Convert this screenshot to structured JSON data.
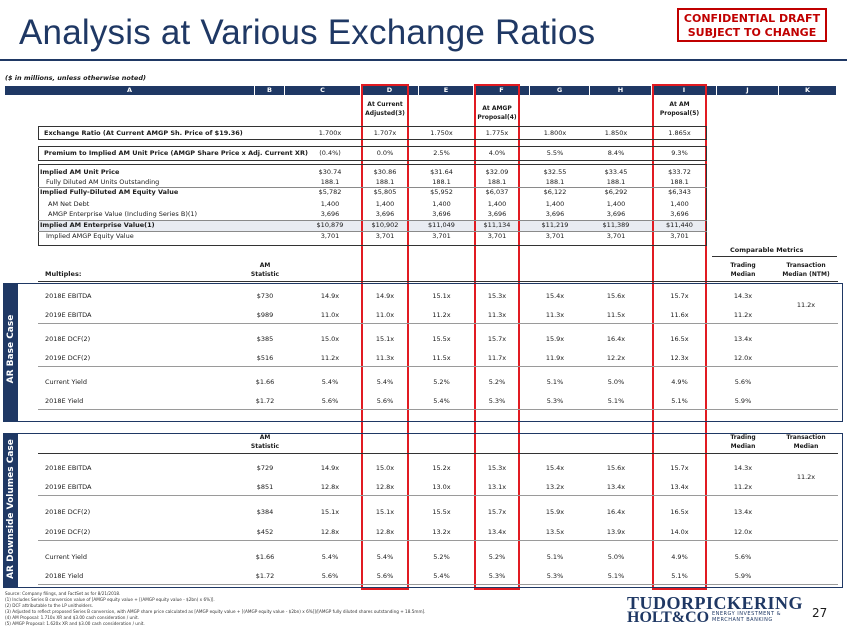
{
  "title": "Analysis at Various Exchange Ratios",
  "confidential": [
    "CONFIDENTIAL DRAFT",
    "SUBJECT TO CHANGE"
  ],
  "subnote": "($ in millions, unless otherwise noted)",
  "letters": [
    "A",
    "B",
    "C",
    "D",
    "E",
    "F",
    "G",
    "H",
    "I",
    "J",
    "K"
  ],
  "col_headers": {
    "d": [
      "At Current",
      "Adjusted(3)"
    ],
    "f": [
      "At AMGP",
      "Proposal(4)"
    ],
    "i": [
      "At AM",
      "Proposal(5)"
    ]
  },
  "top_rows": [
    {
      "label": "Exchange Ratio (At Current AMGP Sh. Price of $19.36)",
      "vals": [
        "1.700x",
        "1.707x",
        "1.750x",
        "1.775x",
        "1.800x",
        "1.850x",
        "1.865x"
      ]
    },
    {
      "label": "Premium to Implied AM Unit Price (AMGP Share Price x Adj. Current XR)",
      "vals": [
        "(0.4%)",
        "0.0%",
        "2.5%",
        "4.0%",
        "5.5%",
        "8.4%",
        "9.3%"
      ]
    },
    {
      "label": "Implied AM Unit Price",
      "vals": [
        "$30.74",
        "$30.86",
        "$31.64",
        "$32.09",
        "$32.55",
        "$33.45",
        "$33.72"
      ]
    },
    {
      "label": "Fully Diluted AM Units Outstanding",
      "vals": [
        "188.1",
        "188.1",
        "188.1",
        "188.1",
        "188.1",
        "188.1",
        "188.1"
      ]
    },
    {
      "label": "Implied Fully-Diluted AM Equity Value",
      "vals": [
        "$5,782",
        "$5,805",
        "$5,952",
        "$6,037",
        "$6,122",
        "$6,292",
        "$6,343"
      ]
    },
    {
      "label": "AM Net Debt",
      "vals": [
        "1,400",
        "1,400",
        "1,400",
        "1,400",
        "1,400",
        "1,400",
        "1,400"
      ]
    },
    {
      "label": "AMGP Enterprise Value (Including Series B)(1)",
      "vals": [
        "3,696",
        "3,696",
        "3,696",
        "3,696",
        "3,696",
        "3,696",
        "3,696"
      ]
    },
    {
      "label": "Implied AM Enterprise Value(1)",
      "vals": [
        "$10,879",
        "$10,902",
        "$11,049",
        "$11,134",
        "$11,219",
        "$11,389",
        "$11,440"
      ]
    },
    {
      "label": "Implied AMGP Equity Value",
      "vals": [
        "3,701",
        "3,701",
        "3,701",
        "3,701",
        "3,701",
        "3,701",
        "3,701"
      ]
    }
  ],
  "comparable_metrics": "Comparable Metrics",
  "base": {
    "section_label": "AR Base Case",
    "multiples_label": "Multiples:",
    "am_stat": [
      "AM",
      "Statistic"
    ],
    "trading": [
      "Trading",
      "Median"
    ],
    "transaction": [
      "Transaction",
      "Median (NTM)"
    ],
    "transaction_value": "11.2x",
    "rows": [
      {
        "label": "2018E EBITDA",
        "stat": "$730",
        "vals": [
          "14.9x",
          "14.9x",
          "15.1x",
          "15.3x",
          "15.4x",
          "15.6x",
          "15.7x"
        ],
        "trading": "14.3x"
      },
      {
        "label": "2019E EBITDA",
        "stat": "$989",
        "vals": [
          "11.0x",
          "11.0x",
          "11.2x",
          "11.3x",
          "11.3x",
          "11.5x",
          "11.6x"
        ],
        "trading": "11.2x"
      },
      {
        "label": "2018E DCF(2)",
        "stat": "$385",
        "vals": [
          "15.0x",
          "15.1x",
          "15.5x",
          "15.7x",
          "15.9x",
          "16.4x",
          "16.5x"
        ],
        "trading": "13.4x"
      },
      {
        "label": "2019E DCF(2)",
        "stat": "$516",
        "vals": [
          "11.2x",
          "11.3x",
          "11.5x",
          "11.7x",
          "11.9x",
          "12.2x",
          "12.3x"
        ],
        "trading": "12.0x"
      },
      {
        "label": "Current Yield",
        "stat": "$1.66",
        "vals": [
          "5.4%",
          "5.4%",
          "5.2%",
          "5.2%",
          "5.1%",
          "5.0%",
          "4.9%"
        ],
        "trading": "5.6%"
      },
      {
        "label": "2018E Yield",
        "stat": "$1.72",
        "vals": [
          "5.6%",
          "5.6%",
          "5.4%",
          "5.3%",
          "5.3%",
          "5.1%",
          "5.1%"
        ],
        "trading": "5.9%"
      }
    ]
  },
  "downside": {
    "section_label": "AR Downside Volumes Case",
    "am_stat": [
      "AM",
      "Statistic"
    ],
    "trading": [
      "Trading",
      "Median"
    ],
    "transaction": [
      "Transaction",
      "Median"
    ],
    "transaction_value": "11.2x",
    "rows": [
      {
        "label": "2018E EBITDA",
        "stat": "$729",
        "vals": [
          "14.9x",
          "15.0x",
          "15.2x",
          "15.3x",
          "15.4x",
          "15.6x",
          "15.7x"
        ],
        "trading": "14.3x"
      },
      {
        "label": "2019E EBITDA",
        "stat": "$851",
        "vals": [
          "12.8x",
          "12.8x",
          "13.0x",
          "13.1x",
          "13.2x",
          "13.4x",
          "13.4x"
        ],
        "trading": "11.2x"
      },
      {
        "label": "2018E DCF(2)",
        "stat": "$384",
        "vals": [
          "15.1x",
          "15.1x",
          "15.5x",
          "15.7x",
          "15.9x",
          "16.4x",
          "16.5x"
        ],
        "trading": "13.4x"
      },
      {
        "label": "2019E DCF(2)",
        "stat": "$452",
        "vals": [
          "12.8x",
          "12.8x",
          "13.2x",
          "13.4x",
          "13.5x",
          "13.9x",
          "14.0x"
        ],
        "trading": "12.0x"
      },
      {
        "label": "Current Yield",
        "stat": "$1.66",
        "vals": [
          "5.4%",
          "5.4%",
          "5.2%",
          "5.2%",
          "5.1%",
          "5.0%",
          "4.9%"
        ],
        "trading": "5.6%"
      },
      {
        "label": "2018E Yield",
        "stat": "$1.72",
        "vals": [
          "5.6%",
          "5.6%",
          "5.4%",
          "5.3%",
          "5.3%",
          "5.1%",
          "5.1%"
        ],
        "trading": "5.9%"
      }
    ]
  },
  "footnotes": [
    "Source: Company filings, and FactSet as for 8/21/2018.",
    "(1)     Includes Series B conversion value of [AMGP equity value + [(AMGP equity value - $2bn) x 6%]].",
    "(2)     DCF attributable to the LP unitholders.",
    "(3)     Adjusted to reflect proposed Series B conversion, with AMGP share price calculated as [AMGP equity value + [(AMGP equity value - $2bn) x 6%]]/[AMGP fully diluted shares outstanding + 18.5mm].",
    "(4)     AM Proposal: 1.710x XR and $3.00 cash consideration / unit.",
    "(5)     AMGP Proposal: 1.620x XR and $3.00 cash consideration / unit."
  ],
  "logo": {
    "line1": "TUDORPICKERING",
    "line2": "HOLT&CO",
    "tag": [
      "ENERGY INVESTMENT &",
      "MERCHANT BANKING"
    ]
  },
  "page_number": "27"
}
